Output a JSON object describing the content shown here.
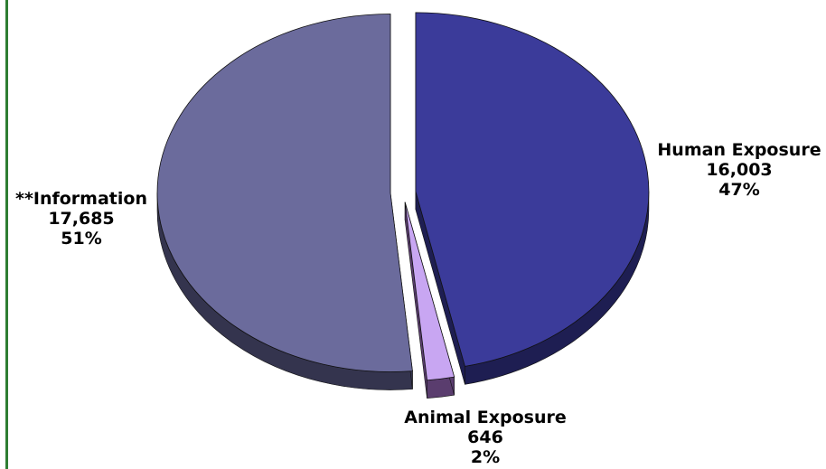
{
  "chart_data": {
    "type": "pie",
    "title": "",
    "slices": [
      {
        "label": "Human Exposure",
        "count": "16,003",
        "value": 16003,
        "percent": "47%",
        "color": "#3b3b9a",
        "side_color": "#1e1e52"
      },
      {
        "label": "Animal Exposure",
        "count": "646",
        "value": 646,
        "percent": "2%",
        "color": "#c8a6f2",
        "side_color": "#5a3d6e"
      },
      {
        "label": "**Information",
        "count": "17,685",
        "value": 17685,
        "percent": "51%",
        "color": "#6b6b9c",
        "side_color": "#34344e"
      }
    ],
    "exploded": true,
    "three_d": true
  }
}
